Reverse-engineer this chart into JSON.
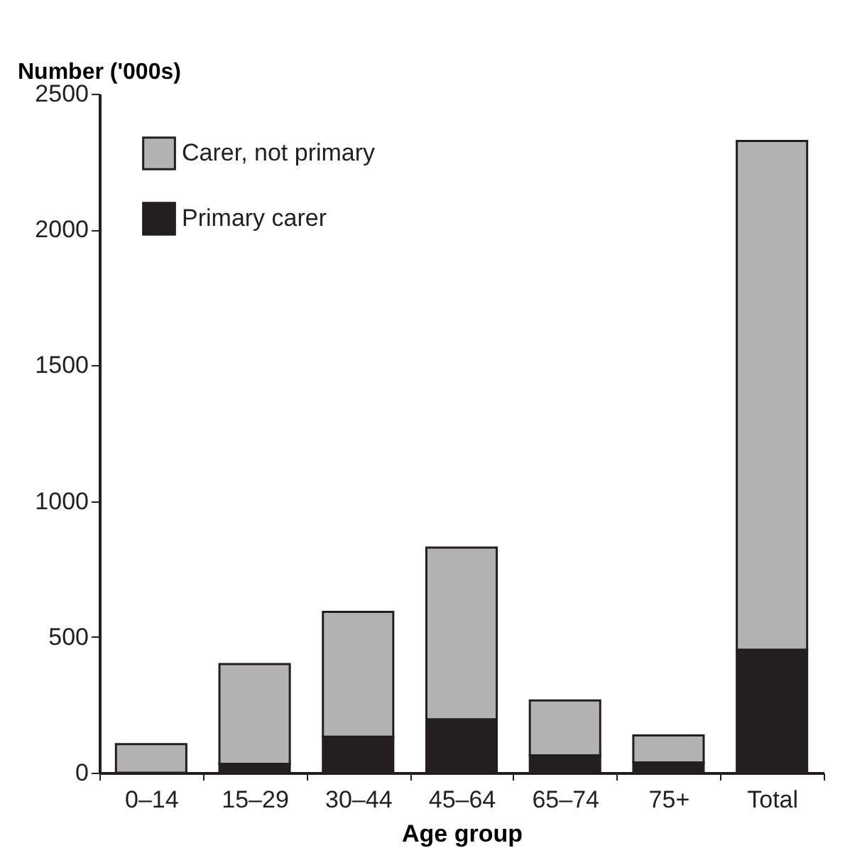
{
  "chart_data": {
    "type": "bar",
    "stacked": true,
    "xlabel": "Age group",
    "ylabel": "Number ('000s)",
    "categories": [
      "0–14",
      "15–29",
      "30–44",
      "45–64",
      "65–74",
      "75+",
      "Total"
    ],
    "series": [
      {
        "name": "Primary carer",
        "color": "#231f20",
        "values": [
          0,
          33,
          133,
          197,
          64,
          38,
          453
        ]
      },
      {
        "name": "Carer, not primary",
        "color": "#b3b3b3",
        "values": [
          105,
          367,
          459,
          632,
          202,
          99,
          1873
        ]
      }
    ],
    "ylim": [
      0,
      2500
    ],
    "yticks": [
      0,
      500,
      1000,
      1500,
      2000,
      2500
    ],
    "grid": false,
    "legend": "top left"
  }
}
